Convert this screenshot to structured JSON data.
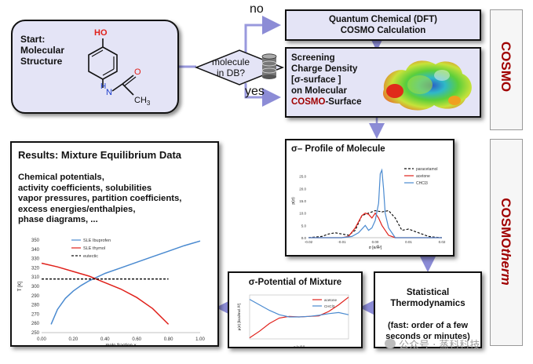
{
  "start": {
    "label": "Start:\nMolecular\nStructure",
    "ho": "HO",
    "h": "H",
    "n": "N",
    "o": "O",
    "ch3": "CH",
    "sub3": "3"
  },
  "decision": {
    "question": "molecule\nin DB?",
    "no": "no",
    "yes": "yes"
  },
  "dft": {
    "label": "Quantum Chemical (DFT)\nCOSMO Calculation"
  },
  "screening": {
    "line1": "Screening",
    "line2": "Charge Density",
    "line3": "[σ-surface ]",
    "line4": "on Molecular",
    "cosmo": "COSMO",
    "surface": "-Surface"
  },
  "side_labels": {
    "cosmo": "COSMO",
    "cosmotherm_a": "COSMO",
    "cosmotherm_b": "therm"
  },
  "profile": {
    "title": "σ– Profile of Molecule"
  },
  "results": {
    "title": "Results: Mixture Equilibrium Data",
    "body": "Chemical potentials,\nactivity coefficients, solubilities\nvapor pressures, partition coefficients,\nexcess energies/enthalpies,\nphase diagrams, ..."
  },
  "mixture": {
    "title": "σ-Potential of Mixture"
  },
  "stat": {
    "title": "Statistical\nThermodynamics",
    "note": "(fast: order of a few\nseconds or minutes)"
  },
  "watermark": {
    "text": "公众号 · 蒸科科技"
  },
  "colors": {
    "accent": "#9999dd",
    "fill": "#e4e4f6",
    "red": "#e0201a",
    "blue": "#4a8ad0",
    "cosmo_red": "#a00000"
  },
  "chart_data": [
    {
      "type": "line",
      "title": "σ– Profile of Molecule",
      "xlabel": "σ [e/Å²]",
      "ylabel": "p(σ)",
      "xlim": [
        -0.02,
        0.02
      ],
      "ylim": [
        0,
        30
      ],
      "xticks": [
        "-0.02",
        "-0.01",
        "0.00",
        "0.01",
        "0.02"
      ],
      "yticks": [
        "0.0",
        "5.0",
        "10.0",
        "15.0",
        "20.0",
        "25.0"
      ],
      "legend_position": "top-right",
      "series": [
        {
          "name": "paracetamol",
          "color": "#111111",
          "dash": true,
          "x": [
            -0.02,
            -0.016,
            -0.014,
            -0.012,
            -0.01,
            -0.008,
            -0.006,
            -0.004,
            -0.002,
            0,
            0.002,
            0.004,
            0.006,
            0.008,
            0.01,
            0.012,
            0.014,
            0.016,
            0.018,
            0.02
          ],
          "y": [
            0,
            0.5,
            1.5,
            2,
            1.5,
            1,
            3,
            9,
            10,
            11,
            10.5,
            11,
            8,
            3,
            3.5,
            2.5,
            1.5,
            0.5,
            0.2,
            0
          ]
        },
        {
          "name": "acetone",
          "color": "#e0201a",
          "dash": false,
          "x": [
            -0.02,
            -0.01,
            -0.008,
            -0.006,
            -0.004,
            -0.003,
            -0.002,
            -0.001,
            0,
            0.001,
            0.002,
            0.004,
            0.006,
            0.02
          ],
          "y": [
            0,
            0,
            0.5,
            4,
            9,
            10,
            9.5,
            8,
            10,
            8,
            5,
            1,
            0,
            0
          ]
        },
        {
          "name": "CHCl3",
          "color": "#4a8ad0",
          "dash": false,
          "x": [
            -0.02,
            -0.01,
            -0.007,
            -0.005,
            -0.003,
            -0.002,
            -0.001,
            0,
            0.001,
            0.0015,
            0.002,
            0.0025,
            0.003,
            0.004,
            0.006,
            0.02
          ],
          "y": [
            0,
            0,
            0.5,
            2,
            5,
            3,
            4,
            7,
            14,
            26,
            27.5,
            20,
            10,
            4,
            0,
            0
          ]
        }
      ]
    },
    {
      "type": "line",
      "title": "",
      "xlabel": "mole fraction x",
      "ylabel": "T [K]",
      "xlim": [
        0,
        1
      ],
      "ylim": [
        250,
        350
      ],
      "xticks": [
        "0.00",
        "0.20",
        "0.40",
        "0.60",
        "0.80",
        "1.00"
      ],
      "yticks": [
        "250",
        "260",
        "270",
        "280",
        "290",
        "300",
        "310",
        "320",
        "330",
        "340",
        "350"
      ],
      "legend_position": "top-center",
      "series": [
        {
          "name": "SLE Ibuprofen",
          "color": "#4a8ad0",
          "dash": false,
          "x": [
            0.06,
            0.1,
            0.15,
            0.2,
            0.25,
            0.3,
            0.35,
            0.4,
            0.5,
            0.6,
            0.7,
            0.8,
            0.9,
            1.0
          ],
          "y": [
            259,
            275,
            287,
            295,
            301,
            306,
            310,
            314,
            320,
            326,
            332,
            338,
            344,
            349
          ]
        },
        {
          "name": "SLE thymol",
          "color": "#e0201a",
          "dash": false,
          "x": [
            0.0,
            0.1,
            0.2,
            0.3,
            0.4,
            0.5,
            0.6,
            0.7,
            0.8
          ],
          "y": [
            325,
            321,
            316,
            311,
            304,
            297,
            288,
            276,
            259
          ]
        },
        {
          "name": "eutectic",
          "color": "#111111",
          "dash": true,
          "x": [
            0.0,
            0.8
          ],
          "y": [
            308,
            308
          ]
        }
      ]
    },
    {
      "type": "line",
      "title": "σ-Potential of Mixture",
      "xlabel": "σ [e/Å²]",
      "ylabel": "μ(σ) [kcal/mol Å²]",
      "xlim": [
        -0.02,
        0.02
      ],
      "ylim": [
        -2,
        2
      ],
      "legend_position": "top-right",
      "series": [
        {
          "name": "acetone",
          "color": "#e0201a",
          "dash": false,
          "x": [
            -0.02,
            -0.016,
            -0.012,
            -0.008,
            -0.004,
            0,
            0.004,
            0.008,
            0.012,
            0.016,
            0.02
          ],
          "y": [
            -1.9,
            -1.3,
            -0.6,
            -0.1,
            0.05,
            0,
            0.05,
            0.1,
            0.5,
            1.1,
            1.8
          ]
        },
        {
          "name": "CHCl3",
          "color": "#4a8ad0",
          "dash": false,
          "x": [
            -0.02,
            -0.016,
            -0.012,
            -0.008,
            -0.004,
            0,
            0.004,
            0.008,
            0.012,
            0.016,
            0.02
          ],
          "y": [
            1.6,
            1.1,
            0.6,
            0.2,
            0.0,
            0.0,
            0.05,
            0.15,
            0.3,
            0.4,
            0.2
          ]
        }
      ]
    }
  ]
}
